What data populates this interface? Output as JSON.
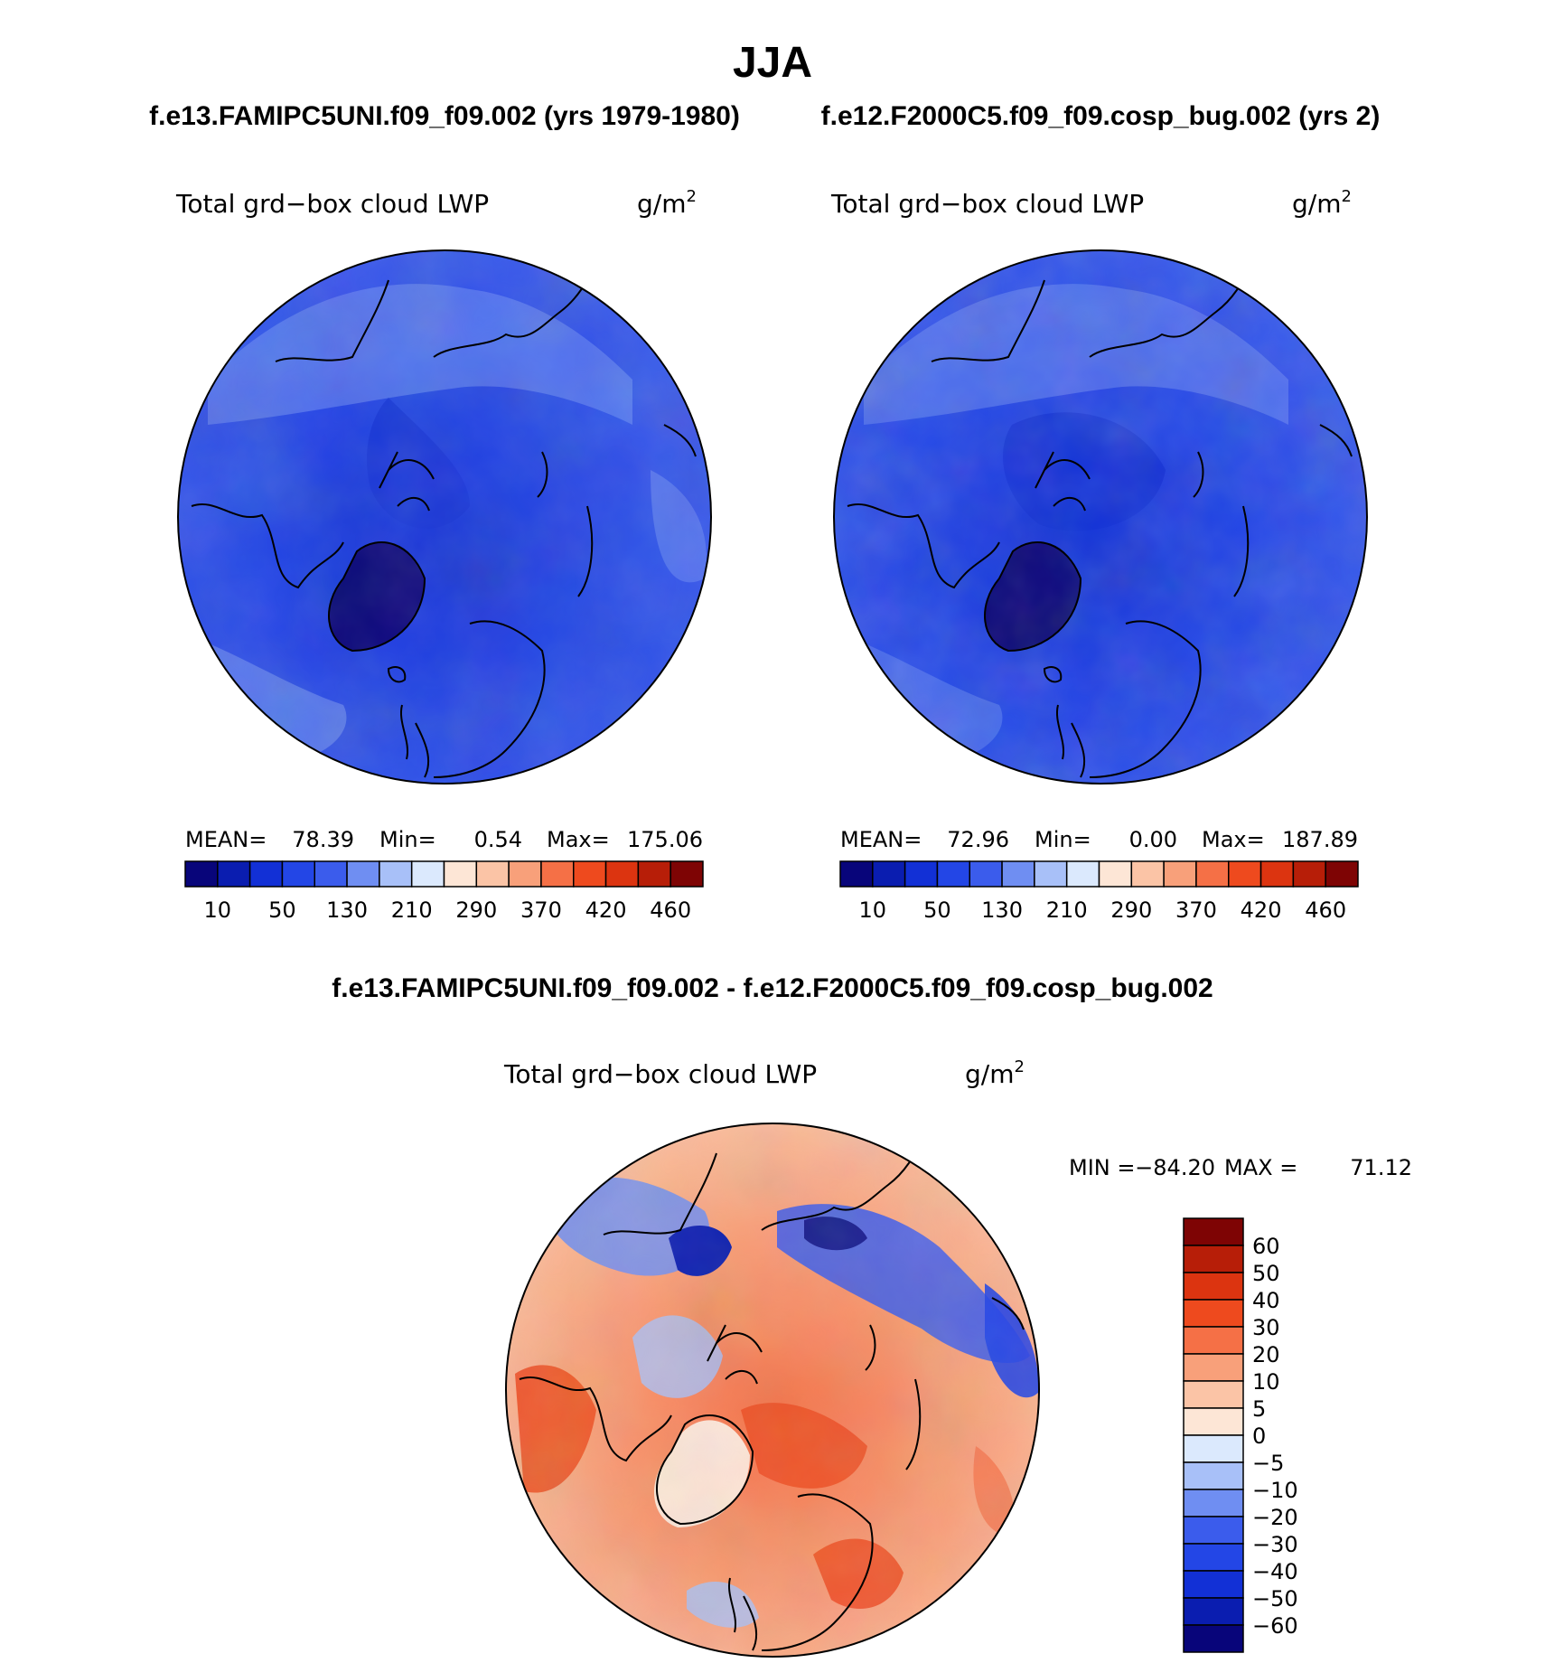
{
  "title": "JJA",
  "subtitle_left": "f.e13.FAMIPC5UNI.f09_f09.002 (yrs 1979-1980)",
  "subtitle_right": "f.e12.F2000C5.f09_f09.cosp_bug.002 (yrs 2)",
  "diff_title": "f.e13.FAMIPC5UNI.f09_f09.002 - f.e12.F2000C5.f09_f09.cosp_bug.002",
  "variable": "Total grd−box cloud LWP",
  "units_base": "g/m",
  "units_exp": "2",
  "chart_data": [
    {
      "type": "heatmap",
      "projection": "north-polar-stereographic",
      "case": "f.e13.FAMIPC5UNI.f09_f09.002",
      "title": "Total grd−box cloud LWP",
      "units": "g/m2",
      "stats_text": {
        "mean_label": "MEAN=",
        "mean": "78.39",
        "min_label": "Min=",
        "min": "0.54",
        "max_label": "Max=",
        "max": "175.06"
      },
      "levels": [
        10,
        30,
        50,
        90,
        130,
        170,
        210,
        250,
        290,
        330,
        370,
        400,
        420,
        440,
        460
      ],
      "tick_labels": [
        "10",
        "50",
        "130",
        "210",
        "290",
        "370",
        "420",
        "460"
      ]
    },
    {
      "type": "heatmap",
      "projection": "north-polar-stereographic",
      "case": "f.e12.F2000C5.f09_f09.cosp_bug.002",
      "title": "Total grd−box cloud LWP",
      "units": "g/m2",
      "stats_text": {
        "mean_label": "MEAN=",
        "mean": "72.96",
        "min_label": "Min=",
        "min": "0.00",
        "max_label": "Max=",
        "max": "187.89"
      },
      "levels": [
        10,
        30,
        50,
        90,
        130,
        170,
        210,
        250,
        290,
        330,
        370,
        400,
        420,
        440,
        460
      ],
      "tick_labels": [
        "10",
        "50",
        "130",
        "210",
        "290",
        "370",
        "420",
        "460"
      ]
    },
    {
      "type": "heatmap",
      "projection": "north-polar-stereographic",
      "case": "difference",
      "title": "Total grd−box cloud LWP",
      "units": "g/m2",
      "range_text": {
        "min_label": "MIN =",
        "min": "−84.20",
        "max_label": "MAX =",
        "max": "71.12"
      },
      "levels": [
        60,
        50,
        40,
        30,
        20,
        10,
        5,
        0,
        -5,
        -10,
        -20,
        -30,
        -40,
        -50,
        -60
      ],
      "tick_labels": [
        "60",
        "50",
        "40",
        "30",
        "20",
        "10",
        "5",
        "0",
        "−5",
        "−10",
        "−20",
        "−30",
        "−40",
        "−50",
        "−60"
      ]
    }
  ],
  "colors": {
    "sequential": [
      "#08057a",
      "#0a1db0",
      "#1230d6",
      "#2346e6",
      "#3b5cec",
      "#6f8ef2",
      "#a8c0f8",
      "#dbe9fd",
      "#fde6d6",
      "#fbc4a6",
      "#f8a07a",
      "#f57046",
      "#ee4a1e",
      "#dc3410",
      "#b71e08",
      "#7e0404"
    ],
    "diverging": [
      "#7e0404",
      "#b71e08",
      "#dc3410",
      "#ee4a1e",
      "#f57046",
      "#f8a07a",
      "#fbc4a6",
      "#fde6d6",
      "#dbe9fd",
      "#a8c0f8",
      "#6f8ef2",
      "#3b5cec",
      "#2346e6",
      "#1230d6",
      "#0a1db0",
      "#08057a"
    ]
  }
}
